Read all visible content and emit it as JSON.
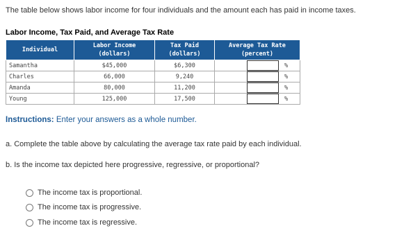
{
  "intro": "The table below shows labor income for four individuals and the amount each has paid in income taxes.",
  "table": {
    "title": "Labor Income, Tax Paid, and Average Tax Rate",
    "headers": [
      [
        "Individual"
      ],
      [
        "Labor Income",
        "(dollars)"
      ],
      [
        "Tax Paid",
        "(dollars)"
      ],
      [
        "Average Tax Rate",
        "(percent)"
      ]
    ],
    "rows": [
      [
        "Samantha",
        "$45,000",
        "$6,300",
        "%"
      ],
      [
        "Charles",
        "66,000",
        "9,240",
        "%"
      ],
      [
        "Amanda",
        "80,000",
        "11,200",
        "%"
      ],
      [
        "Young",
        "125,000",
        "17,500",
        "%"
      ]
    ]
  },
  "instructions": {
    "label": "Instructions:",
    "text": "Enter your answers as a whole number."
  },
  "questions": [
    "a. Complete the table above by calculating the average tax rate paid by each individual.",
    "b. Is the income tax depicted here progressive, regressive, or proportional?"
  ],
  "options": [
    "The income tax is proportional.",
    "The income tax is progressive.",
    "The income tax is regressive."
  ]
}
